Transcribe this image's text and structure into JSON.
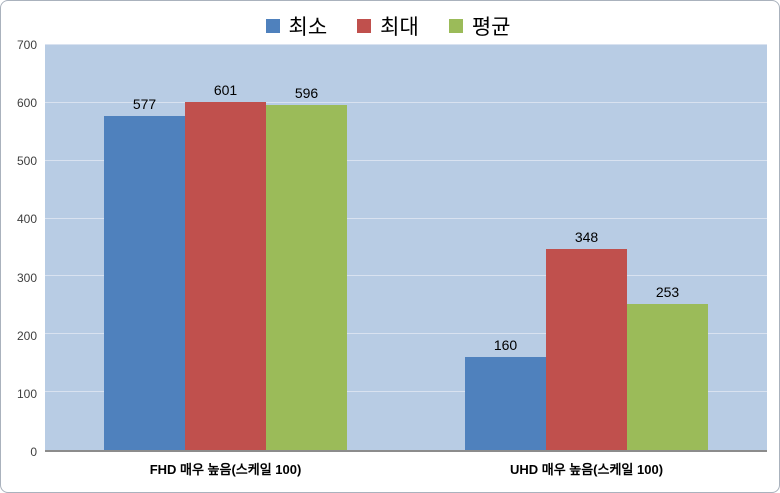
{
  "chart_data": {
    "type": "bar",
    "title": "",
    "xlabel": "",
    "ylabel": "",
    "categories": [
      "FHD 매우 높음(스케일 100)",
      "UHD 매우 높음(스케일 100)"
    ],
    "series": [
      {
        "name": "최소",
        "color": "#4F81BD",
        "values": [
          577,
          160
        ]
      },
      {
        "name": "최대",
        "color": "#C0504D",
        "values": [
          601,
          348
        ]
      },
      {
        "name": "평균",
        "color": "#9BBB59",
        "values": [
          596,
          253
        ]
      }
    ],
    "ylim": [
      0,
      700
    ],
    "ytick_step": 100,
    "yticks": [
      0,
      100,
      200,
      300,
      400,
      500,
      600,
      700
    ],
    "grid": true,
    "grid_color": "#D9E2F0",
    "plot_background": "#B8CCE4",
    "legend_position": "top",
    "data_labels": true
  }
}
